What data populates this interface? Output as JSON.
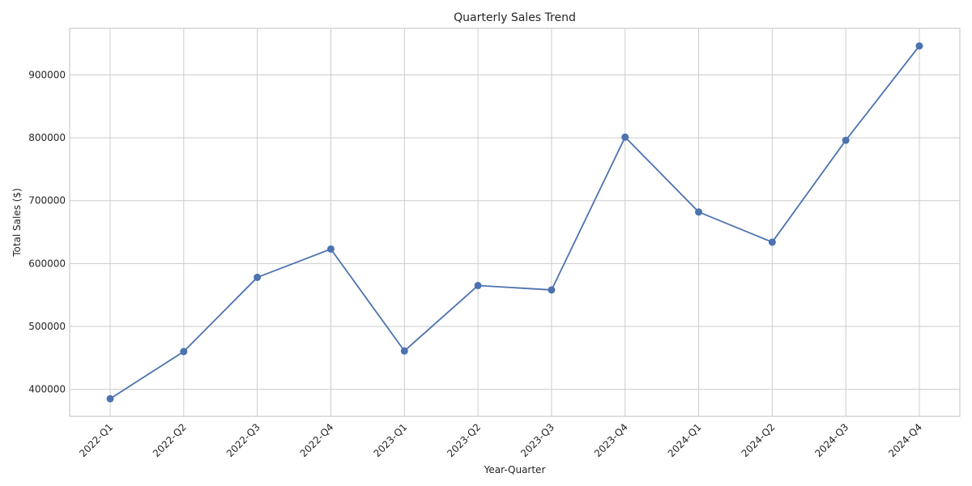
{
  "chart_data": {
    "type": "line",
    "title": "Quarterly Sales Trend",
    "xlabel": "Year-Quarter",
    "ylabel": "Total Sales ($)",
    "categories": [
      "2022-Q1",
      "2022-Q2",
      "2022-Q3",
      "2022-Q4",
      "2023-Q1",
      "2023-Q2",
      "2023-Q3",
      "2023-Q4",
      "2024-Q1",
      "2024-Q2",
      "2024-Q3",
      "2024-Q4"
    ],
    "series": [
      {
        "values": [
          385000,
          460000,
          578000,
          623000,
          461000,
          565000,
          558000,
          801000,
          682000,
          634000,
          796000,
          946000
        ],
        "color": "#4c72b0",
        "marker": "circle"
      }
    ],
    "ylim": [
      357000,
      974000
    ],
    "yticks": [
      400000,
      500000,
      600000,
      700000,
      800000,
      900000
    ],
    "ytick_labels": [
      "400000",
      "500000",
      "600000",
      "700000",
      "800000",
      "900000"
    ],
    "grid": true
  }
}
